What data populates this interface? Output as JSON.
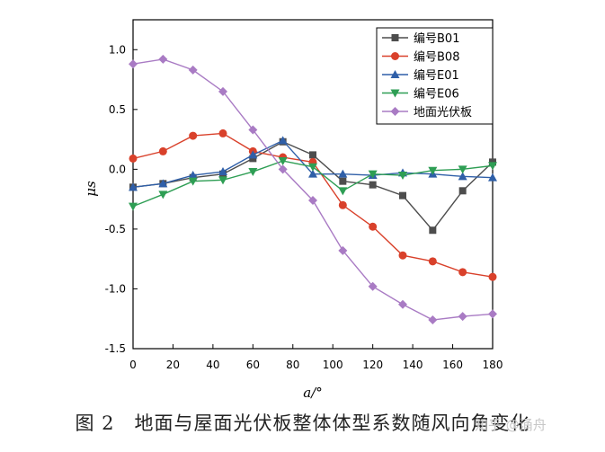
{
  "caption": {
    "figure_number": "图 2",
    "text": "地面与屋面光伏板整体体型系数随风向角变化"
  },
  "watermark": "知乎 @涌舟",
  "chart_data": {
    "type": "line",
    "xlabel": "a/°",
    "ylabel": "μs",
    "xlim": [
      0,
      180
    ],
    "ylim": [
      -1.5,
      1.25
    ],
    "xticks": [
      0,
      20,
      40,
      60,
      80,
      100,
      120,
      140,
      160,
      180
    ],
    "yticks": [
      -1.5,
      -1.0,
      -0.5,
      0.0,
      0.5,
      1.0
    ],
    "ytick_labels": [
      "-1.5",
      "-1.0",
      "-0.5",
      "0.0",
      "0.5",
      "1.0"
    ],
    "legend_position": "top-right",
    "x": [
      0,
      15,
      30,
      45,
      60,
      75,
      90,
      105,
      120,
      135,
      150,
      165,
      180
    ],
    "series": [
      {
        "name": "编号B01",
        "color": "#4d4d4d",
        "marker": "square",
        "values": [
          -0.15,
          -0.12,
          -0.07,
          -0.04,
          0.09,
          0.23,
          0.12,
          -0.1,
          -0.13,
          -0.22,
          -0.51,
          -0.18,
          0.06
        ]
      },
      {
        "name": "编号B08",
        "color": "#d9412b",
        "marker": "circle",
        "values": [
          0.09,
          0.15,
          0.28,
          0.3,
          0.15,
          0.1,
          0.06,
          -0.3,
          -0.48,
          -0.72,
          -0.77,
          -0.86,
          -0.9
        ]
      },
      {
        "name": "编号E01",
        "color": "#2f5fa8",
        "marker": "triangle-up",
        "values": [
          -0.15,
          -0.12,
          -0.05,
          -0.02,
          0.12,
          0.24,
          -0.04,
          -0.04,
          -0.05,
          -0.03,
          -0.04,
          -0.06,
          -0.07
        ]
      },
      {
        "name": "编号E06",
        "color": "#2e9e54",
        "marker": "triangle-down",
        "values": [
          -0.31,
          -0.21,
          -0.1,
          -0.09,
          -0.02,
          0.07,
          0.02,
          -0.18,
          -0.04,
          -0.05,
          -0.01,
          0.0,
          0.03
        ]
      },
      {
        "name": "地面光伏板",
        "color": "#a97bc4",
        "marker": "diamond",
        "values": [
          0.88,
          0.92,
          0.83,
          0.65,
          0.33,
          0.0,
          -0.26,
          -0.68,
          -0.98,
          -1.13,
          -1.26,
          -1.23,
          -1.21
        ]
      }
    ]
  }
}
